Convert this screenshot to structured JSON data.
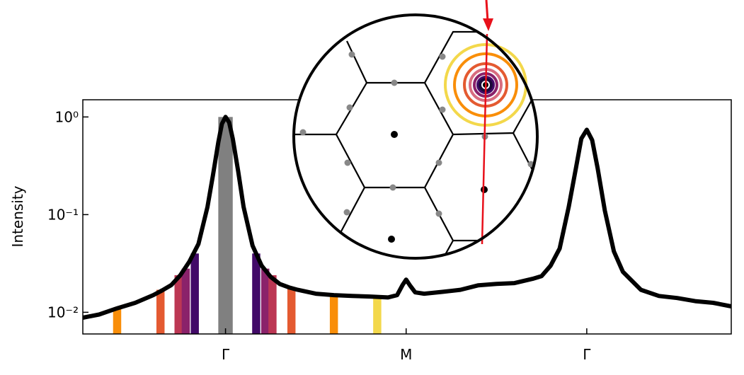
{
  "chart_data": {
    "type": "line",
    "y_label": "Intensity",
    "log_y": true,
    "xlim": [
      -0.79,
      2.8
    ],
    "ylim": [
      0.006,
      1.5
    ],
    "xticks": [
      {
        "value": 0,
        "label": "Γ"
      },
      {
        "value": 1,
        "label": "M"
      },
      {
        "value": 2,
        "label": "Γ"
      }
    ],
    "yticks": [
      {
        "value": 1,
        "label": "10⁰"
      },
      {
        "value": 0.1,
        "label": "10⁻¹"
      },
      {
        "value": 0.01,
        "label": "10⁻²"
      }
    ],
    "series": [
      {
        "color": "#000000",
        "x": [
          -0.79,
          -0.7,
          -0.6,
          -0.5,
          -0.4,
          -0.35,
          -0.3,
          -0.25,
          -0.2,
          -0.15,
          -0.1,
          -0.07,
          -0.04,
          -0.02,
          0,
          0.02,
          0.04,
          0.07,
          0.1,
          0.15,
          0.2,
          0.25,
          0.3,
          0.35,
          0.4,
          0.5,
          0.6,
          0.7,
          0.8,
          0.9,
          0.95,
          0.98,
          1.0,
          1.02,
          1.05,
          1.1,
          1.2,
          1.3,
          1.4,
          1.5,
          1.6,
          1.7,
          1.75,
          1.8,
          1.85,
          1.9,
          1.94,
          1.97,
          2.0,
          2.03,
          2.06,
          2.1,
          2.15,
          2.2,
          2.3,
          2.4,
          2.5,
          2.6,
          2.7,
          2.8
        ],
        "values": [
          0.0088,
          0.0095,
          0.011,
          0.0125,
          0.015,
          0.0168,
          0.019,
          0.024,
          0.033,
          0.05,
          0.12,
          0.25,
          0.55,
          0.85,
          1.0,
          0.88,
          0.6,
          0.28,
          0.12,
          0.048,
          0.03,
          0.023,
          0.0195,
          0.018,
          0.017,
          0.0155,
          0.015,
          0.0147,
          0.0145,
          0.0142,
          0.015,
          0.019,
          0.0216,
          0.019,
          0.016,
          0.0155,
          0.0162,
          0.017,
          0.0189,
          0.0195,
          0.0199,
          0.022,
          0.0235,
          0.03,
          0.045,
          0.12,
          0.3,
          0.6,
          0.74,
          0.58,
          0.3,
          0.11,
          0.042,
          0.026,
          0.017,
          0.0147,
          0.014,
          0.013,
          0.0125,
          0.0115
        ]
      }
    ],
    "bars": {
      "x": [
        -0.6,
        -0.36,
        -0.26,
        -0.22,
        -0.17,
        0,
        0.17,
        0.22,
        0.26,
        0.365,
        0.6,
        0.84
      ],
      "width": [
        0.045,
        0.045,
        0.045,
        0.045,
        0.045,
        0.08,
        0.045,
        0.045,
        0.045,
        0.045,
        0.045,
        0.045
      ],
      "values": [
        0.011,
        0.017,
        0.024,
        0.028,
        0.04,
        1.0,
        0.04,
        0.028,
        0.024,
        0.018,
        0.015,
        0.014
      ],
      "colors": [
        "#f98e09",
        "#e45a31",
        "#bc3754",
        "#8a226a",
        "#420a68",
        "#808080",
        "#420a68",
        "#8a226a",
        "#bc3754",
        "#e45a31",
        "#f98e09",
        "#f3d84b"
      ]
    }
  }
}
